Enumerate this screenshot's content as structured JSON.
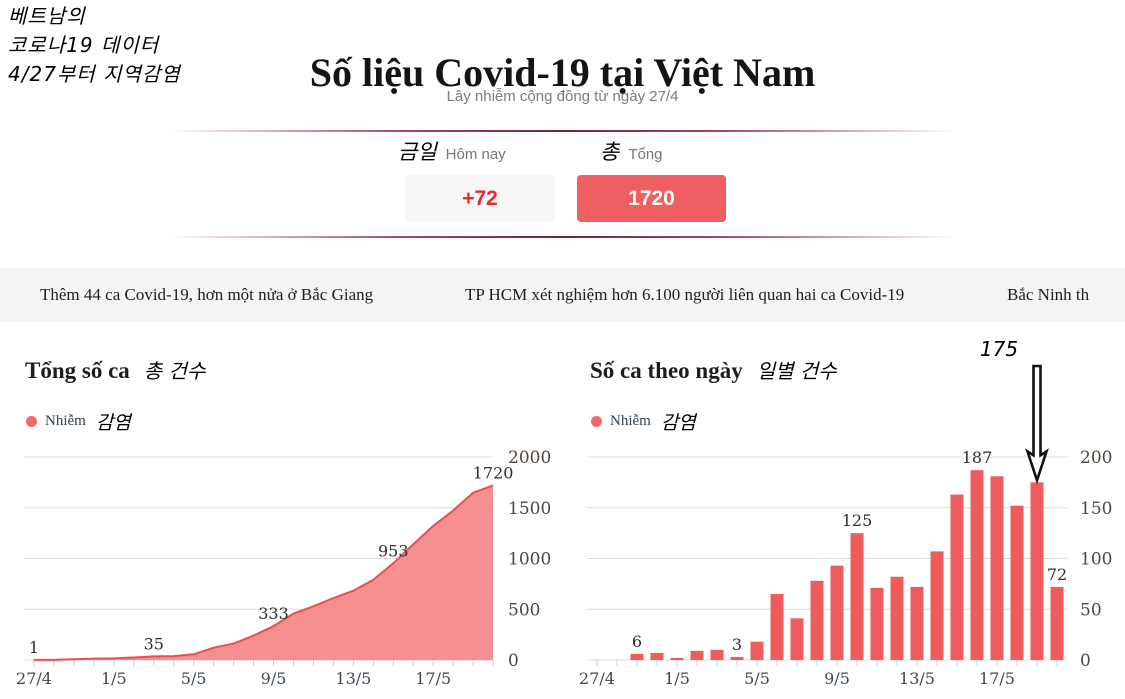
{
  "handwritten_note": {
    "lines": [
      "베트남의",
      "코로나19 데이터",
      "4/27부터 지역감염"
    ]
  },
  "header": {
    "title": "Số liệu Covid-19 tại Việt Nam",
    "subtitle": "Lây nhiễm cộng đồng từ ngày 27/4"
  },
  "stats": {
    "today": {
      "korean": "금일",
      "label": "Hôm nay",
      "value": "+72"
    },
    "total": {
      "korean": "총",
      "label": "Tổng",
      "value": "1720"
    }
  },
  "news": {
    "items": [
      "Thêm 44 ca Covid-19, hơn một nửa ở Bắc Giang",
      "TP HCM xét nghiệm hơn 6.100 người liên quan hai ca Covid-19",
      "Bắc Ninh th"
    ]
  },
  "colors": {
    "bar_red": "#ee5c5e",
    "area_fill": "#f5898b",
    "area_stroke": "#e94f52",
    "legend_dot": "#f2696b",
    "total_box_red": "#ee5f62",
    "today_value_red": "#e9282d",
    "gridline": "#dcdcdc",
    "tick": "#c2cedb"
  },
  "chart_data": [
    {
      "type": "area",
      "title": "Tổng số ca",
      "title_korean": "총 건수",
      "legend": {
        "label": "Nhiễm",
        "korean": "감염",
        "color": "#f2696b"
      },
      "x": [
        "27/4",
        "28/4",
        "29/4",
        "30/4",
        "1/5",
        "2/5",
        "3/5",
        "4/5",
        "5/5",
        "6/5",
        "7/5",
        "8/5",
        "9/5",
        "10/5",
        "11/5",
        "12/5",
        "13/5",
        "14/5",
        "15/5",
        "16/5",
        "17/5",
        "18/5",
        "19/5",
        "20/5"
      ],
      "values": [
        1,
        1,
        7,
        14,
        16,
        25,
        35,
        38,
        56,
        121,
        162,
        240,
        333,
        458,
        529,
        611,
        683,
        790,
        953,
        1140,
        1321,
        1473,
        1648,
        1720
      ],
      "ylim": [
        0,
        2000
      ],
      "yticks": [
        0,
        500,
        1000,
        1500,
        2000
      ],
      "xtick_indices": [
        0,
        4,
        8,
        12,
        16,
        20
      ],
      "point_labels": [
        {
          "index": 0,
          "text": "1"
        },
        {
          "index": 6,
          "text": "35"
        },
        {
          "index": 12,
          "text": "333"
        },
        {
          "index": 18,
          "text": "953"
        },
        {
          "index": 23,
          "text": "1720"
        }
      ],
      "grid": true,
      "legend_position": "top-left",
      "yaxis_side": "right"
    },
    {
      "type": "bar",
      "title": "Số ca theo ngày",
      "title_korean": "일별 건수",
      "legend": {
        "label": "Nhiễm",
        "korean": "감염",
        "color": "#f2696b"
      },
      "x": [
        "27/4",
        "28/4",
        "29/4",
        "30/4",
        "1/5",
        "2/5",
        "3/5",
        "4/5",
        "5/5",
        "6/5",
        "7/5",
        "8/5",
        "9/5",
        "10/5",
        "11/5",
        "12/5",
        "13/5",
        "14/5",
        "15/5",
        "16/5",
        "17/5",
        "18/5",
        "19/5",
        "20/5"
      ],
      "values": [
        0,
        0,
        6,
        7,
        2,
        9,
        10,
        3,
        18,
        65,
        41,
        78,
        93,
        125,
        71,
        82,
        72,
        107,
        163,
        187,
        181,
        152,
        175,
        72
      ],
      "ylim": [
        0,
        200
      ],
      "yticks": [
        0,
        50,
        100,
        150,
        200
      ],
      "xtick_indices": [
        0,
        4,
        8,
        12,
        16,
        20
      ],
      "bar_labels": [
        {
          "index": 2,
          "text": "6"
        },
        {
          "index": 7,
          "text": "3"
        },
        {
          "index": 13,
          "text": "125"
        },
        {
          "index": 19,
          "text": "187"
        },
        {
          "index": 23,
          "text": "72"
        }
      ],
      "arrow_annotation": {
        "index": 22,
        "text": "175"
      },
      "grid": true,
      "legend_position": "top-left",
      "yaxis_side": "right"
    }
  ]
}
